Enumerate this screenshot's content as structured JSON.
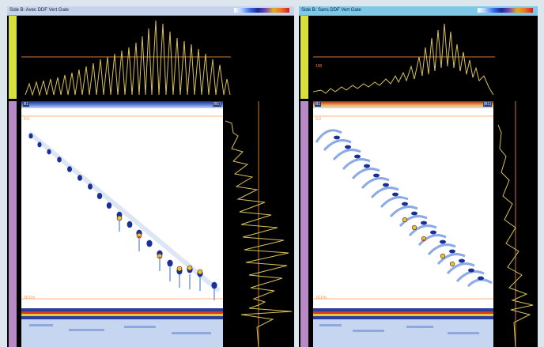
{
  "left_panel": {
    "title": "Side B: Avec DDF Vert Gate",
    "ascan_h_label": "",
    "top_tag_left": "B1",
    "top_tag_right": "(B1)",
    "bscan_level": "0.0",
    "bottom_level": "10.0 b"
  },
  "right_panel": {
    "title": "Side B: Sans DDF Vert Gate",
    "ascan_h_label": "100",
    "top_tag_left": "B1",
    "top_tag_right": "(B1)",
    "bscan_level": "0.0",
    "bottom_level": "10.0 b"
  },
  "colors": {
    "signal": "#d9c15a",
    "gate": "#c87a3a",
    "echo_dark": "#1a2f9a",
    "echo_light": "#6f95e0",
    "backwall_red": "#d83a20",
    "backwall_yellow": "#e9c43a"
  }
}
